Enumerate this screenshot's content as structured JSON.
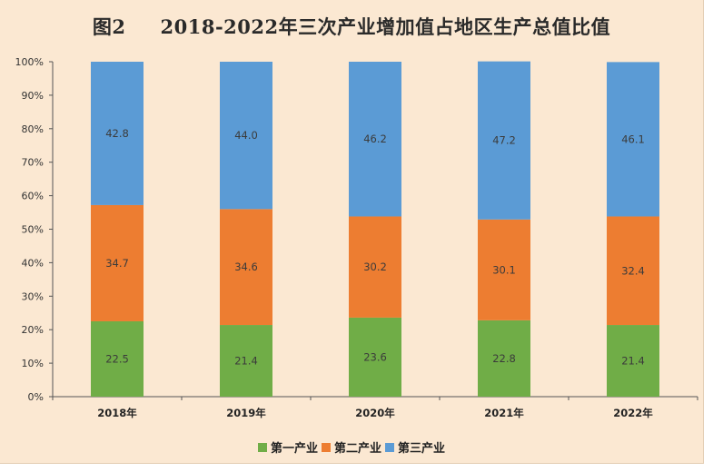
{
  "chart_data": {
    "type": "bar",
    "stacked": true,
    "title_fig": "图2",
    "title": "2018-2022年三次产业增加值占地区生产总值比值",
    "categories": [
      "2018年",
      "2019年",
      "2020年",
      "2021年",
      "2022年"
    ],
    "series": [
      {
        "name": "第一产业",
        "color": "#70ad47",
        "values": [
          22.5,
          21.4,
          23.6,
          22.8,
          21.4
        ]
      },
      {
        "name": "第二产业",
        "color": "#ed7d31",
        "values": [
          34.7,
          34.6,
          30.2,
          30.1,
          32.4
        ]
      },
      {
        "name": "第三产业",
        "color": "#5b9bd5",
        "values": [
          42.8,
          44.0,
          46.2,
          47.2,
          46.1
        ]
      }
    ],
    "yticks": [
      "0%",
      "10%",
      "20%",
      "30%",
      "40%",
      "50%",
      "60%",
      "70%",
      "80%",
      "90%",
      "100%"
    ],
    "ylim": [
      0,
      100
    ],
    "legend_position": "bottom"
  }
}
